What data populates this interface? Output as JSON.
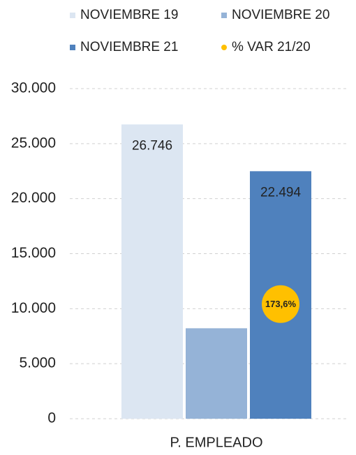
{
  "chart_data": {
    "type": "bar",
    "categories": [
      "P. EMPLEADO"
    ],
    "series": [
      {
        "name": "NOVIEMBRE 19",
        "color": "#dce6f2",
        "values": [
          26746
        ],
        "value_labels": [
          "26.746"
        ]
      },
      {
        "name": "NOVIEMBRE 20",
        "color": "#95b3d7",
        "values": [
          8221
        ]
      },
      {
        "name": "NOVIEMBRE 21",
        "color": "#4f81bd",
        "values": [
          22494
        ],
        "value_labels": [
          "22.494"
        ]
      },
      {
        "name": "% VAR 21/20",
        "color": "#ffc000",
        "values": [
          173.6
        ],
        "value_labels": [
          "173,6%"
        ],
        "axis": "y2",
        "type": "point"
      }
    ],
    "ylim": [
      0,
      30000
    ],
    "yticks": [
      {
        "value": 0,
        "label": "0"
      },
      {
        "value": 5000,
        "label": "5.000"
      },
      {
        "value": 10000,
        "label": "10.000"
      },
      {
        "value": 15000,
        "label": "15.000"
      },
      {
        "value": 20000,
        "label": "20.000"
      },
      {
        "value": 25000,
        "label": "25.000"
      },
      {
        "value": 30000,
        "label": "30.000"
      }
    ],
    "y2lim": [
      0,
      500
    ],
    "grid": true
  }
}
